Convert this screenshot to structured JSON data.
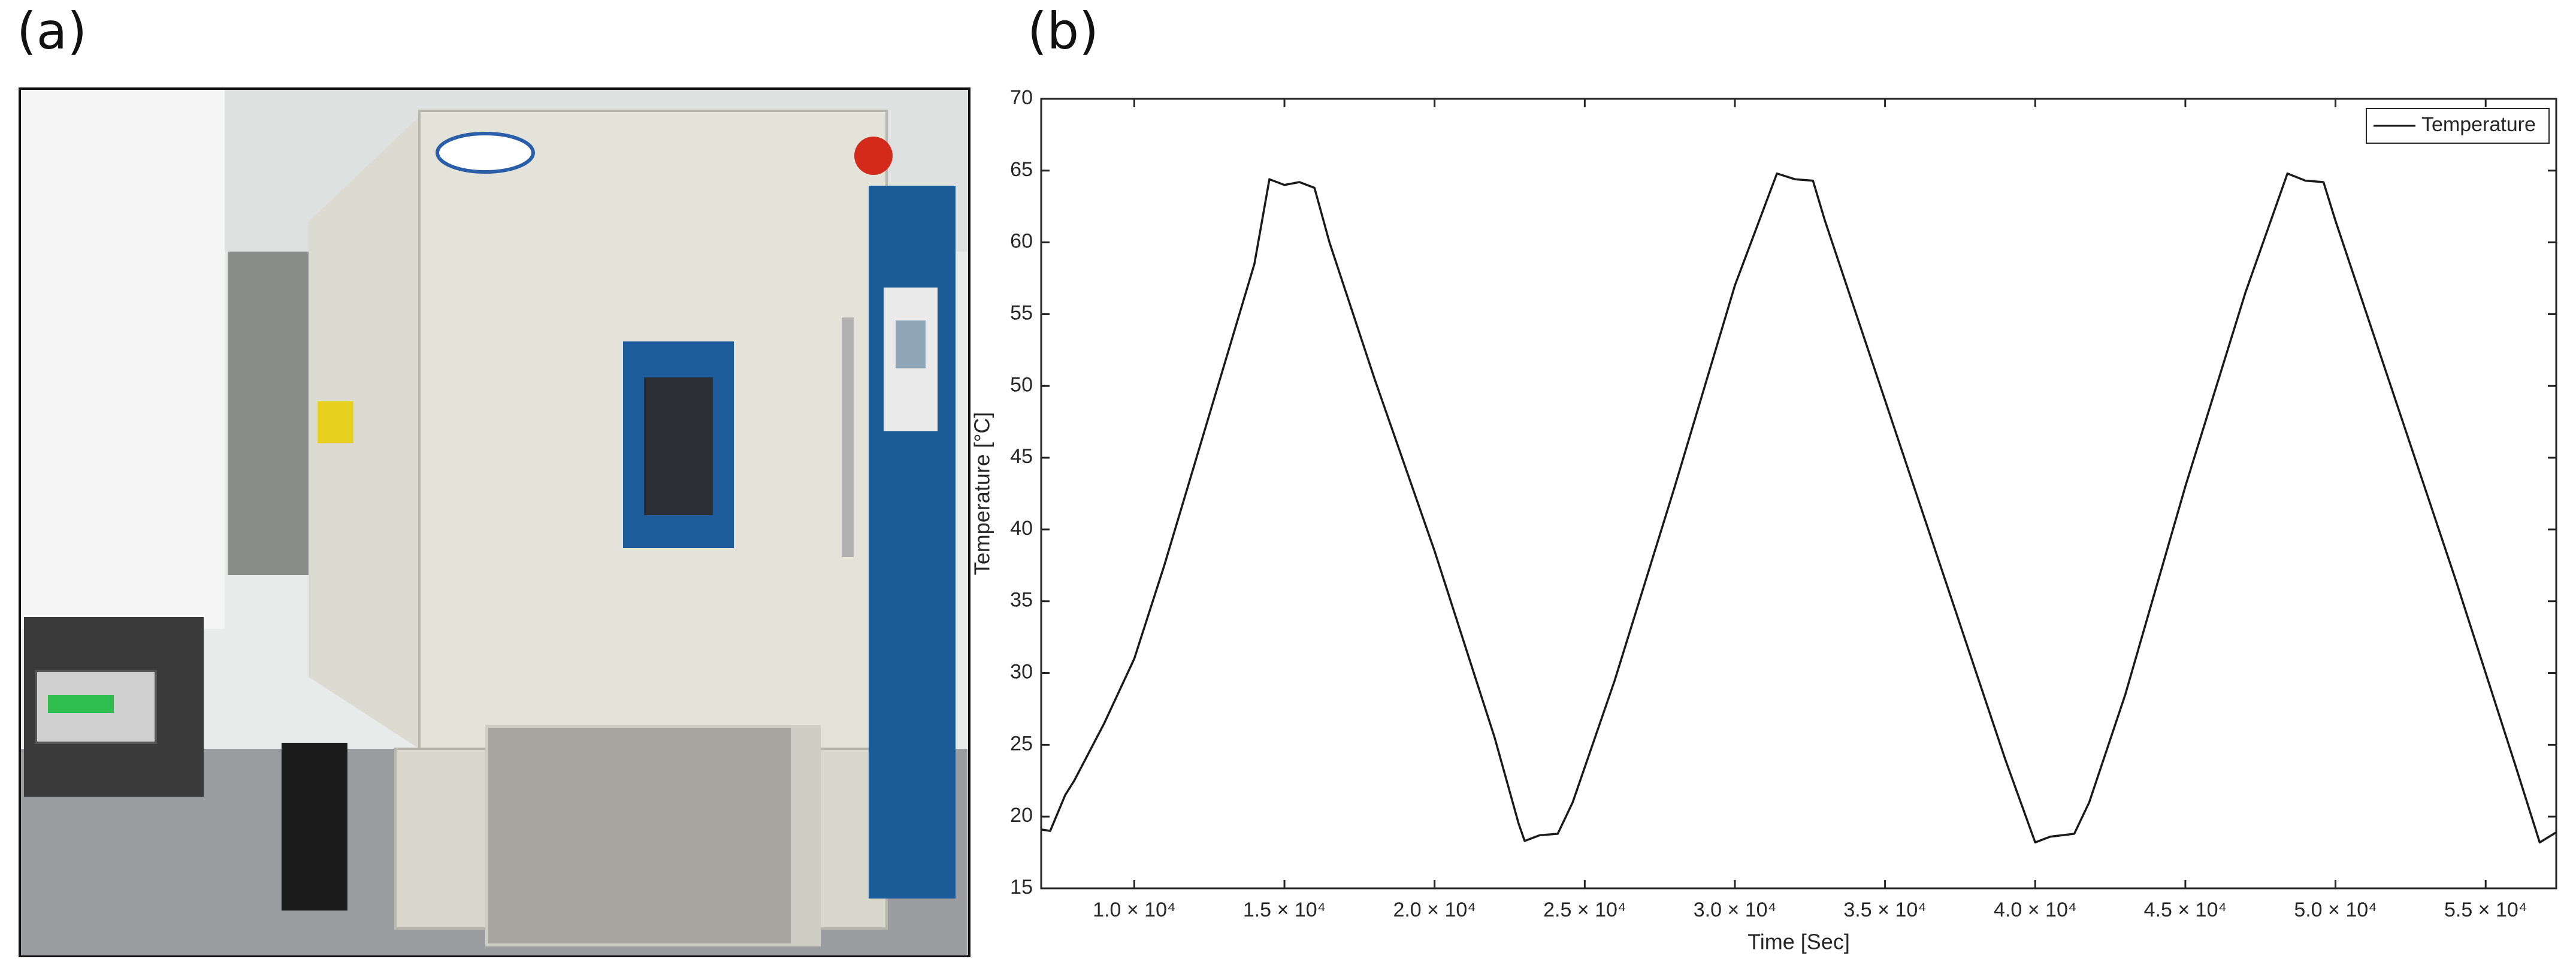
{
  "panel_labels": [
    "(a)",
    "(b)"
  ],
  "chart_data": {
    "type": "line",
    "xlabel": "Time [Sec]",
    "ylabel": "Temperature [°C]",
    "xlim": [
      6900,
      57350
    ],
    "ylim": [
      15,
      70
    ],
    "xticks": [
      {
        "value": 10000,
        "label": "1.0 × 10⁴"
      },
      {
        "value": 15000,
        "label": "1.5 × 10⁴"
      },
      {
        "value": 20000,
        "label": "2.0 × 10⁴"
      },
      {
        "value": 25000,
        "label": "2.5 × 10⁴"
      },
      {
        "value": 30000,
        "label": "3.0 × 10⁴"
      },
      {
        "value": 35000,
        "label": "3.5 × 10⁴"
      },
      {
        "value": 40000,
        "label": "4.0 × 10⁴"
      },
      {
        "value": 45000,
        "label": "4.5 × 10⁴"
      },
      {
        "value": 50000,
        "label": "5.0 × 10⁴"
      },
      {
        "value": 55000,
        "label": "5.5 × 10⁴"
      }
    ],
    "yticks": [
      15,
      20,
      25,
      30,
      35,
      40,
      45,
      50,
      55,
      60,
      65,
      70
    ],
    "grid": false,
    "legend": "upper right",
    "x": [
      6900,
      7200,
      7700,
      8000,
      9000,
      10000,
      11000,
      12000,
      13000,
      14000,
      14500,
      15000,
      15500,
      16000,
      16500,
      18000,
      20000,
      22000,
      22800,
      23000,
      23500,
      24100,
      24600,
      26000,
      28000,
      30000,
      31400,
      32000,
      32600,
      33000,
      35000,
      37000,
      39000,
      40000,
      40500,
      41300,
      41800,
      43000,
      45000,
      47000,
      48400,
      49000,
      49600,
      50000,
      52000,
      54000,
      56000,
      56800,
      57350
    ],
    "series": [
      {
        "name": "Temperature",
        "color": "#1a1a1a",
        "values": [
          19.1,
          19.0,
          21.5,
          22.5,
          26.5,
          31,
          37.5,
          44.5,
          51.5,
          58.5,
          64.4,
          64.0,
          64.2,
          63.8,
          60,
          50.5,
          38.5,
          25.5,
          19.5,
          18.3,
          18.7,
          18.8,
          21,
          29.5,
          43,
          57,
          64.8,
          64.4,
          64.3,
          61.5,
          49,
          36.5,
          24,
          18.2,
          18.6,
          18.8,
          21,
          28.5,
          43,
          56.5,
          64.8,
          64.3,
          64.2,
          61.5,
          49,
          36.5,
          23.5,
          18.2,
          18.9
        ]
      }
    ]
  }
}
